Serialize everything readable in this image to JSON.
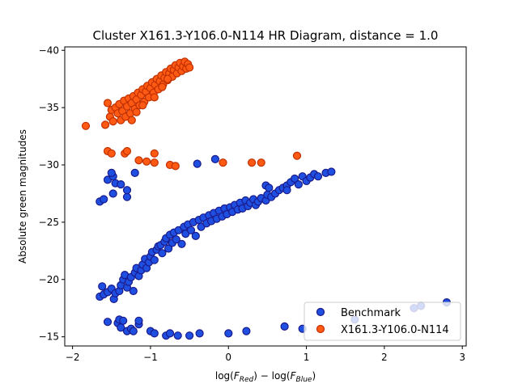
{
  "chart_data": {
    "type": "scatter",
    "title": "Cluster X161.3-Y106.0-N114 HR Diagram, distance = 1.0",
    "xlabel": "log(F_Red) − log(F_Blue)",
    "xlabel_parts": {
      "prefix": "log(",
      "var1": "F",
      "sub1": "Red",
      "middle": ") − log(",
      "var2": "F",
      "sub2": "Blue",
      "suffix": ")"
    },
    "ylabel": "Absolute green magnitudes",
    "xlim": [
      -2.1,
      3.05
    ],
    "ylim": [
      -40.3,
      -14.2
    ],
    "xticks": [
      -2,
      -1,
      0,
      1,
      2,
      3
    ],
    "yticks": [
      -15,
      -20,
      -25,
      -30,
      -35,
      -40
    ],
    "grid": false,
    "legend_position": "bottom-right",
    "series": [
      {
        "name": "Benchmark",
        "color": "#1f4fe0",
        "edge_color": "#1a1a8c",
        "points": [
          [
            -1.55,
            -16.3
          ],
          [
            -1.42,
            -16.2
          ],
          [
            -1.4,
            -16.5
          ],
          [
            -1.38,
            -15.8
          ],
          [
            -1.35,
            -16.4
          ],
          [
            -1.3,
            -15.5
          ],
          [
            -1.25,
            -15.7
          ],
          [
            -1.22,
            -15.5
          ],
          [
            -1.15,
            -16.1
          ],
          [
            -1.15,
            -16.4
          ],
          [
            -1.0,
            -15.5
          ],
          [
            -0.95,
            -15.3
          ],
          [
            -0.8,
            -15.1
          ],
          [
            -0.75,
            -15.3
          ],
          [
            -0.65,
            -15.1
          ],
          [
            -0.5,
            -15.1
          ],
          [
            -0.37,
            -15.3
          ],
          [
            0.0,
            -15.3
          ],
          [
            0.23,
            -15.5
          ],
          [
            0.72,
            -15.9
          ],
          [
            0.95,
            -15.7
          ],
          [
            1.62,
            -16.5
          ],
          [
            2.38,
            -17.5
          ],
          [
            2.47,
            -17.7
          ],
          [
            2.8,
            -18.0
          ],
          [
            -1.65,
            -18.5
          ],
          [
            -1.6,
            -18.7
          ],
          [
            -1.55,
            -18.9
          ],
          [
            -1.62,
            -19.4
          ],
          [
            -1.5,
            -19.2
          ],
          [
            -1.47,
            -18.3
          ],
          [
            -1.45,
            -18.8
          ],
          [
            -1.4,
            -19.0
          ],
          [
            -1.38,
            -19.5
          ],
          [
            -1.35,
            -20.0
          ],
          [
            -1.33,
            -20.4
          ],
          [
            -1.3,
            -19.3
          ],
          [
            -1.28,
            -19.8
          ],
          [
            -1.25,
            -20.2
          ],
          [
            -1.22,
            -19.0
          ],
          [
            -1.2,
            -20.6
          ],
          [
            -1.18,
            -21.0
          ],
          [
            -1.15,
            -20.3
          ],
          [
            -1.12,
            -20.8
          ],
          [
            -1.1,
            -21.3
          ],
          [
            -1.07,
            -21.8
          ],
          [
            -1.05,
            -21.0
          ],
          [
            -1.02,
            -21.5
          ],
          [
            -1.0,
            -22.0
          ],
          [
            -0.98,
            -22.4
          ],
          [
            -0.95,
            -21.7
          ],
          [
            -0.92,
            -22.6
          ],
          [
            -0.9,
            -22.9
          ],
          [
            -0.87,
            -23.0
          ],
          [
            -0.85,
            -22.3
          ],
          [
            -0.82,
            -23.3
          ],
          [
            -0.8,
            -23.6
          ],
          [
            -0.77,
            -22.7
          ],
          [
            -0.75,
            -23.9
          ],
          [
            -0.72,
            -23.2
          ],
          [
            -0.7,
            -24.1
          ],
          [
            -0.67,
            -23.5
          ],
          [
            -0.64,
            -24.3
          ],
          [
            -0.6,
            -23.1
          ],
          [
            -0.57,
            -24.6
          ],
          [
            -0.55,
            -24.0
          ],
          [
            -0.52,
            -24.8
          ],
          [
            -0.48,
            -24.3
          ],
          [
            -0.45,
            -25.0
          ],
          [
            -0.42,
            -23.8
          ],
          [
            -0.38,
            -25.2
          ],
          [
            -0.35,
            -24.6
          ],
          [
            -0.32,
            -25.4
          ],
          [
            -0.28,
            -24.9
          ],
          [
            -0.25,
            -25.6
          ],
          [
            -0.22,
            -25.1
          ],
          [
            -0.19,
            -25.8
          ],
          [
            -0.15,
            -25.3
          ],
          [
            -0.12,
            -26.0
          ],
          [
            -0.08,
            -25.5
          ],
          [
            -0.05,
            -26.2
          ],
          [
            -0.02,
            -25.7
          ],
          [
            0.02,
            -26.3
          ],
          [
            0.05,
            -25.9
          ],
          [
            0.08,
            -26.5
          ],
          [
            0.12,
            -26.1
          ],
          [
            0.15,
            -26.7
          ],
          [
            0.18,
            -26.2
          ],
          [
            0.22,
            -26.9
          ],
          [
            0.25,
            -26.4
          ],
          [
            0.28,
            -26.7
          ],
          [
            0.32,
            -27.0
          ],
          [
            0.35,
            -26.5
          ],
          [
            0.38,
            -26.8
          ],
          [
            0.42,
            -27.1
          ],
          [
            0.48,
            -26.9
          ],
          [
            0.5,
            -27.4
          ],
          [
            0.55,
            -27.2
          ],
          [
            0.6,
            -27.5
          ],
          [
            0.65,
            -27.8
          ],
          [
            0.7,
            -28.0
          ],
          [
            0.75,
            -28.2
          ],
          [
            0.8,
            -28.5
          ],
          [
            0.85,
            -28.8
          ],
          [
            0.9,
            -28.3
          ],
          [
            0.95,
            -29.0
          ],
          [
            1.0,
            -28.6
          ],
          [
            1.05,
            -28.9
          ],
          [
            1.1,
            -29.2
          ],
          [
            1.15,
            -29.0
          ],
          [
            1.25,
            -29.3
          ],
          [
            1.32,
            -29.4
          ],
          [
            0.48,
            -28.2
          ],
          [
            0.52,
            -28.0
          ],
          [
            0.75,
            -27.8
          ],
          [
            -1.65,
            -26.8
          ],
          [
            -1.6,
            -27.0
          ],
          [
            -1.48,
            -27.5
          ],
          [
            -1.3,
            -27.2
          ],
          [
            -1.3,
            -27.8
          ],
          [
            -1.45,
            -28.4
          ],
          [
            -1.55,
            -28.7
          ],
          [
            -1.48,
            -29.0
          ],
          [
            -1.5,
            -29.3
          ],
          [
            -1.38,
            -28.3
          ],
          [
            -1.2,
            -29.3
          ],
          [
            -0.4,
            -30.1
          ],
          [
            -0.17,
            -30.5
          ]
        ]
      },
      {
        "name": "X161.3-Y106.0-N114",
        "color": "#ff5a14",
        "edge_color": "#c03000",
        "points": [
          [
            -1.83,
            -33.4
          ],
          [
            -1.55,
            -31.2
          ],
          [
            -1.5,
            -31.0
          ],
          [
            -1.33,
            -31.0
          ],
          [
            -1.3,
            -31.2
          ],
          [
            -1.15,
            -30.4
          ],
          [
            -1.05,
            -30.3
          ],
          [
            -0.95,
            -31.0
          ],
          [
            -0.95,
            -30.2
          ],
          [
            -0.75,
            -30.0
          ],
          [
            -0.68,
            -29.9
          ],
          [
            -0.07,
            -30.2
          ],
          [
            0.3,
            -30.2
          ],
          [
            0.42,
            -30.2
          ],
          [
            0.88,
            -30.8
          ],
          [
            -1.58,
            -33.5
          ],
          [
            -1.55,
            -35.4
          ],
          [
            -1.52,
            -34.2
          ],
          [
            -1.5,
            -34.8
          ],
          [
            -1.48,
            -33.8
          ],
          [
            -1.45,
            -35.0
          ],
          [
            -1.42,
            -34.5
          ],
          [
            -1.4,
            -35.3
          ],
          [
            -1.38,
            -33.9
          ],
          [
            -1.36,
            -34.7
          ],
          [
            -1.34,
            -35.6
          ],
          [
            -1.32,
            -34.2
          ],
          [
            -1.3,
            -35.1
          ],
          [
            -1.28,
            -35.8
          ],
          [
            -1.26,
            -34.5
          ],
          [
            -1.24,
            -35.4
          ],
          [
            -1.22,
            -36.0
          ],
          [
            -1.2,
            -34.9
          ],
          [
            -1.18,
            -35.7
          ],
          [
            -1.16,
            -36.3
          ],
          [
            -1.14,
            -35.2
          ],
          [
            -1.12,
            -36.1
          ],
          [
            -1.1,
            -36.6
          ],
          [
            -1.08,
            -35.5
          ],
          [
            -1.06,
            -36.4
          ],
          [
            -1.04,
            -36.9
          ],
          [
            -1.02,
            -35.9
          ],
          [
            -1.0,
            -36.7
          ],
          [
            -0.98,
            -37.2
          ],
          [
            -0.96,
            -36.3
          ],
          [
            -0.94,
            -37.0
          ],
          [
            -0.92,
            -37.5
          ],
          [
            -0.9,
            -36.6
          ],
          [
            -0.88,
            -37.3
          ],
          [
            -0.86,
            -37.8
          ],
          [
            -0.84,
            -37.0
          ],
          [
            -0.82,
            -37.6
          ],
          [
            -0.8,
            -38.1
          ],
          [
            -0.78,
            -37.4
          ],
          [
            -0.76,
            -38.0
          ],
          [
            -0.74,
            -38.4
          ],
          [
            -0.72,
            -37.7
          ],
          [
            -0.7,
            -38.3
          ],
          [
            -0.68,
            -38.7
          ],
          [
            -0.66,
            -38.0
          ],
          [
            -0.64,
            -38.5
          ],
          [
            -0.62,
            -38.9
          ],
          [
            -0.6,
            -38.2
          ],
          [
            -0.58,
            -38.6
          ],
          [
            -0.56,
            -39.0
          ],
          [
            -0.54,
            -38.4
          ],
          [
            -0.52,
            -38.8
          ],
          [
            -0.5,
            -38.5
          ],
          [
            -1.24,
            -33.9
          ],
          [
            -1.18,
            -34.6
          ],
          [
            -1.1,
            -35.2
          ],
          [
            -0.95,
            -35.9
          ],
          [
            -0.85,
            -36.8
          ],
          [
            -0.78,
            -37.5
          ]
        ]
      }
    ]
  }
}
